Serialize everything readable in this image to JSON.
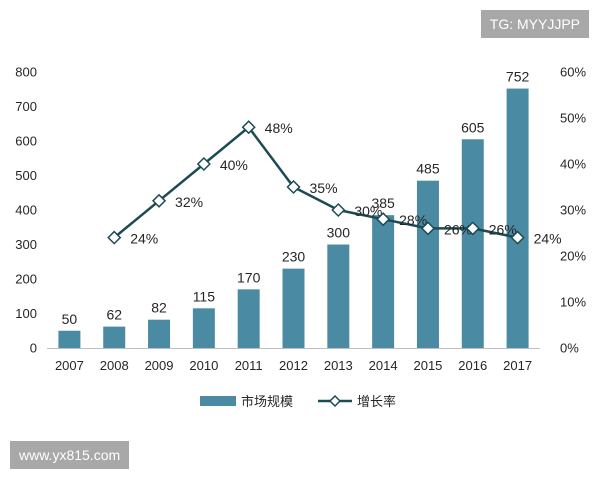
{
  "watermark_top": "TG: MYYJJPP",
  "watermark_bottom": "www.yx815.com",
  "colors": {
    "bar": "#4a8ba3",
    "line": "#1c4a55",
    "marker_fill": "#ffffff"
  },
  "chart_data": {
    "type": "bar",
    "title": "",
    "xlabel": "",
    "ylabel": "",
    "categories": [
      "2007",
      "2008",
      "2009",
      "2010",
      "2011",
      "2012",
      "2013",
      "2014",
      "2015",
      "2016",
      "2017"
    ],
    "series": [
      {
        "name": "市场规模",
        "type": "bar",
        "axis": "left",
        "values": [
          50,
          62,
          82,
          115,
          170,
          230,
          300,
          385,
          485,
          605,
          752
        ],
        "labels": [
          "50",
          "62",
          "82",
          "115",
          "170",
          "230",
          "300",
          "385",
          "485",
          "605",
          "752"
        ]
      },
      {
        "name": "增长率",
        "type": "line",
        "axis": "right",
        "marker": "diamond-open",
        "values": [
          null,
          24,
          32,
          40,
          48,
          35,
          30,
          28,
          26,
          26,
          24
        ],
        "labels": [
          "",
          "24%",
          "32%",
          "40%",
          "48%",
          "35%",
          "30%",
          "28%",
          "26%",
          "26%",
          "24%"
        ]
      }
    ],
    "ylim": [
      0,
      800
    ],
    "y_ticks": [
      "0",
      "100",
      "200",
      "300",
      "400",
      "500",
      "600",
      "700",
      "800"
    ],
    "y2lim": [
      0,
      60
    ],
    "y2_ticks": [
      "0%",
      "10%",
      "20%",
      "30%",
      "40%",
      "50%",
      "60%"
    ],
    "grid": false,
    "legend": {
      "position": "bottom",
      "entries": [
        "市场规模",
        "增长率"
      ]
    }
  }
}
